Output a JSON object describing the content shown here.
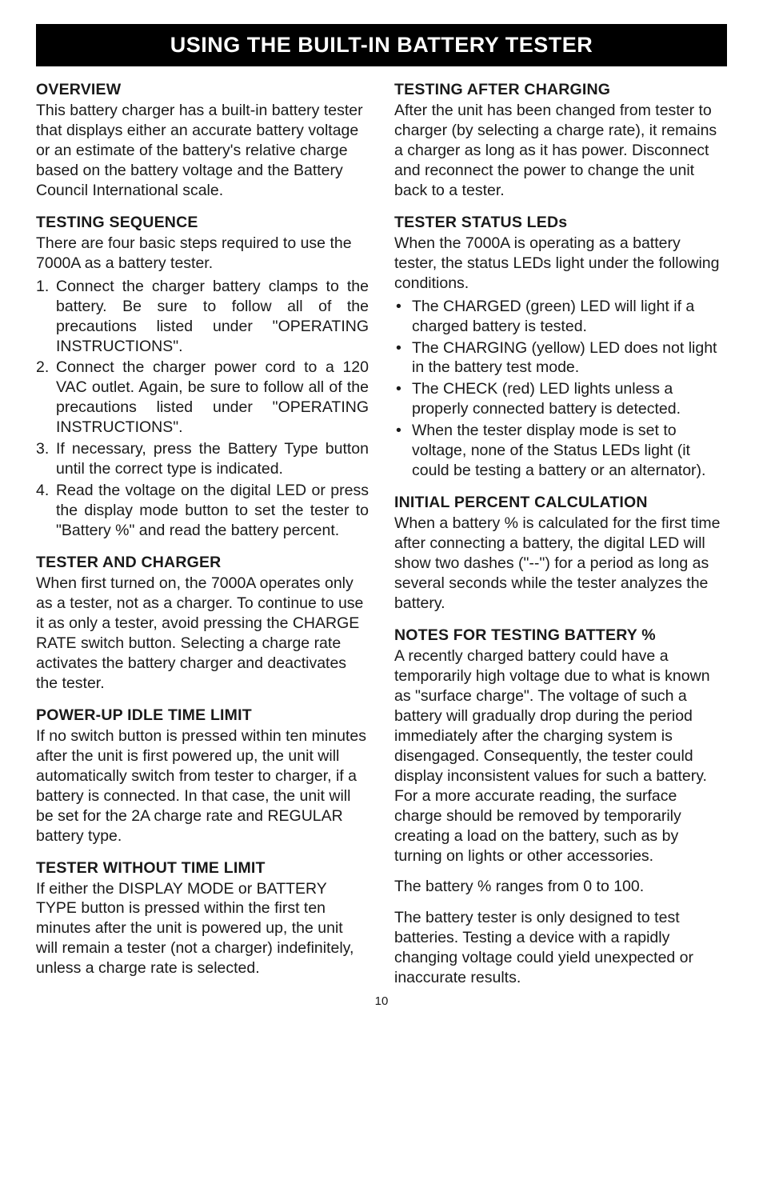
{
  "title_bar": "USING THE BUILT-IN BATTERY TESTER",
  "page_number": "10",
  "left": {
    "overview": {
      "heading": "OVERVIEW",
      "text": "This battery charger has a built-in battery tester that displays either an accurate battery voltage or an estimate of the battery's relative charge based on the battery voltage and the Battery Council International scale."
    },
    "testing_sequence": {
      "heading": "TESTING SEQUENCE",
      "intro": "There are four basic steps required to use the 7000A as a battery tester.",
      "items": [
        "Connect the charger battery clamps to the battery. Be sure to follow all of the precautions listed under \"OPERATING INSTRUCTIONS\".",
        "Connect the charger power cord to a 120 VAC outlet. Again, be sure to follow all of the precautions listed under \"OPERATING INSTRUCTIONS\".",
        "If necessary, press the Battery Type button until the correct type is indicated.",
        "Read the voltage on the digital LED or press the display mode button to set the tester to \"Battery %\" and read the battery percent."
      ]
    },
    "tester_and_charger": {
      "heading": "TESTER AND CHARGER",
      "text": "When first turned on, the 7000A operates only as a tester, not as a charger. To continue to use it as only a tester, avoid pressing the CHARGE RATE switch button. Selecting a charge rate activates the battery charger and deactivates the tester."
    },
    "powerup_idle": {
      "heading": "POWER-UP IDLE TIME LIMIT",
      "text": "If no switch button is pressed within ten minutes after the unit is first powered up, the unit will automatically switch from tester to charger, if a battery is connected. In that case, the unit will be set for the 2A charge rate and REGULAR battery type."
    },
    "tester_without_limit": {
      "heading": "TESTER WITHOUT TIME LIMIT",
      "text": "If either the DISPLAY MODE or BATTERY TYPE button is pressed within the first ten minutes after the unit is powered up, the unit will remain a tester (not a charger) indefinitely, unless a charge rate is selected."
    }
  },
  "right": {
    "testing_after_charging": {
      "heading": "TESTING AFTER CHARGING",
      "text": "After the unit has been changed from tester to charger (by selecting a charge rate), it remains a charger as long as it has power. Disconnect and reconnect the power to change the unit back to a tester."
    },
    "tester_status_leds": {
      "heading": "TESTER STATUS LEDs",
      "intro": "When the 7000A is operating as a battery tester, the status LEDs light under the following conditions.",
      "items": [
        "The CHARGED (green) LED will light if a charged battery is tested.",
        "The CHARGING (yellow) LED does not light in the battery test mode.",
        "The CHECK (red) LED lights unless a properly connected battery is detected.",
        "When the tester display mode is set to voltage, none of the Status LEDs light (it could be testing a battery or an alternator)."
      ]
    },
    "initial_percent": {
      "heading": "INITIAL PERCENT CALCULATION",
      "text": "When a battery % is calculated for the first time after connecting a battery, the digital LED will show two dashes (\"--\") for a period as long as several seconds while the tester analyzes the battery."
    },
    "notes_testing_battery": {
      "heading": "NOTES FOR TESTING BATTERY %",
      "text1": "A recently charged battery could have a temporarily high voltage due to what is known as \"surface charge\". The voltage of such a battery will gradually drop during the period immediately after the charging system is disengaged. Consequently, the tester could display inconsistent values for such a battery. For a more accurate reading, the surface charge should be removed by temporarily creating a load on the battery, such as by turning on lights or other accessories.",
      "text2": "The battery % ranges from 0 to 100.",
      "text3": "The battery tester is only designed to test batteries. Testing a device with a rapidly changing voltage could yield unexpected or inaccurate results."
    }
  }
}
